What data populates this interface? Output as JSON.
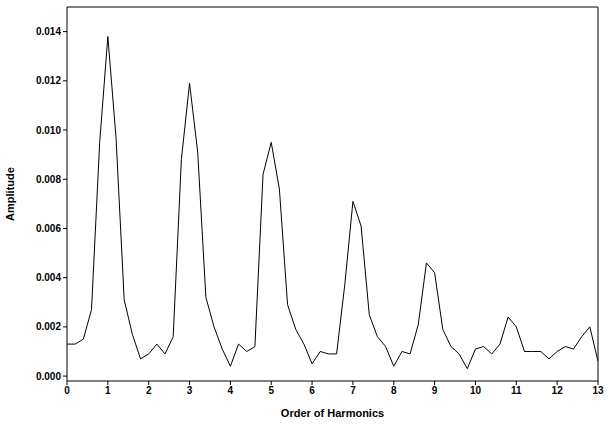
{
  "chart_data": {
    "type": "line",
    "x_label": "Order of Harmonics",
    "y_label": "Amplitude",
    "x": [
      0,
      0.2,
      0.4,
      0.6,
      0.8,
      1.0,
      1.2,
      1.4,
      1.6,
      1.8,
      2.0,
      2.2,
      2.4,
      2.6,
      2.8,
      3.0,
      3.2,
      3.4,
      3.6,
      3.8,
      4.0,
      4.2,
      4.4,
      4.6,
      4.8,
      5.0,
      5.2,
      5.4,
      5.6,
      5.8,
      6.0,
      6.2,
      6.4,
      6.6,
      6.8,
      7.0,
      7.2,
      7.4,
      7.6,
      7.8,
      8.0,
      8.2,
      8.4,
      8.6,
      8.8,
      9.0,
      9.2,
      9.4,
      9.6,
      9.8,
      10.0,
      10.2,
      10.4,
      10.6,
      10.8,
      11.0,
      11.2,
      11.4,
      11.6,
      11.8,
      12.0,
      12.2,
      12.4,
      12.6,
      12.8,
      13.0
    ],
    "values": [
      0.0013,
      0.0013,
      0.0015,
      0.0027,
      0.0095,
      0.0138,
      0.0097,
      0.0031,
      0.0017,
      0.0007,
      0.0009,
      0.0013,
      0.0009,
      0.0016,
      0.0088,
      0.0119,
      0.0091,
      0.0032,
      0.002,
      0.0011,
      0.0004,
      0.0013,
      0.001,
      0.0012,
      0.0082,
      0.0095,
      0.0076,
      0.0029,
      0.0019,
      0.0013,
      0.0005,
      0.001,
      0.0009,
      0.0009,
      0.0037,
      0.0071,
      0.0061,
      0.0025,
      0.0016,
      0.0012,
      0.0004,
      0.001,
      0.0009,
      0.0021,
      0.0046,
      0.0042,
      0.0019,
      0.0012,
      0.0009,
      0.0003,
      0.0011,
      0.0012,
      0.0009,
      0.0013,
      0.0024,
      0.002,
      0.001,
      0.001,
      0.001,
      0.0007,
      0.001,
      0.0012,
      0.0011,
      0.0016,
      0.002,
      0.0006
    ],
    "color": "#000000",
    "xlim": [
      0,
      13
    ],
    "xticks": [
      0,
      1,
      2,
      3,
      4,
      5,
      6,
      7,
      8,
      9,
      10,
      11,
      12,
      13
    ],
    "ylim": [
      -0.0002,
      0.015
    ],
    "yticks": [
      {
        "value": 0,
        "label": "0.000"
      },
      0.002,
      0.004,
      0.006,
      0.008,
      {
        "value": 0.01,
        "label": "0.010"
      },
      {
        "value": 0.012,
        "label": "0.012"
      },
      {
        "value": 0.014,
        "label": "0.014"
      }
    ],
    "grid": false
  }
}
